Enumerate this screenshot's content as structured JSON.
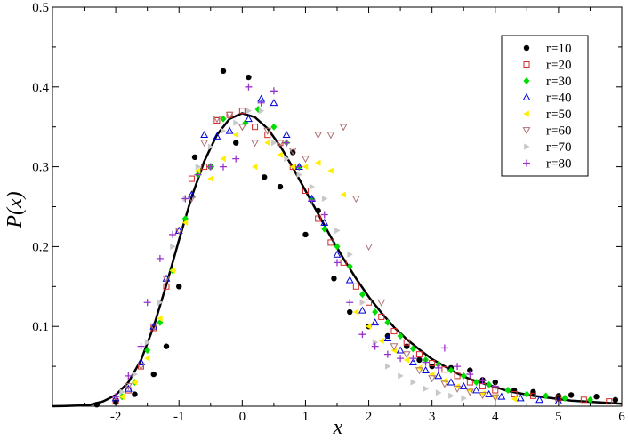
{
  "chart_data": {
    "type": "scatter",
    "xlabel": "x",
    "ylabel": "P(x)",
    "xlim": [
      -3,
      6
    ],
    "ylim": [
      0,
      0.5
    ],
    "x_ticks": [
      -2,
      -1,
      0,
      1,
      2,
      3,
      4,
      5,
      6
    ],
    "y_ticks": [
      0.1,
      0.2,
      0.3,
      0.4,
      0.5
    ],
    "legend_position": "top-right",
    "fit_curve": {
      "name": "",
      "color": "#000000",
      "points": [
        [
          -3,
          0
        ],
        [
          -2.8,
          0.0003
        ],
        [
          -2.6,
          0.0008
        ],
        [
          -2.4,
          0.002
        ],
        [
          -2.2,
          0.006
        ],
        [
          -2,
          0.014
        ],
        [
          -1.8,
          0.03
        ],
        [
          -1.6,
          0.058
        ],
        [
          -1.4,
          0.1
        ],
        [
          -1.2,
          0.152
        ],
        [
          -1,
          0.208
        ],
        [
          -0.8,
          0.262
        ],
        [
          -0.6,
          0.307
        ],
        [
          -0.4,
          0.34
        ],
        [
          -0.2,
          0.36
        ],
        [
          0,
          0.367
        ],
        [
          0.2,
          0.362
        ],
        [
          0.4,
          0.348
        ],
        [
          0.6,
          0.326
        ],
        [
          0.8,
          0.299
        ],
        [
          1,
          0.27
        ],
        [
          1.2,
          0.241
        ],
        [
          1.4,
          0.212
        ],
        [
          1.6,
          0.185
        ],
        [
          1.8,
          0.16
        ],
        [
          2,
          0.137
        ],
        [
          2.2,
          0.117
        ],
        [
          2.4,
          0.099
        ],
        [
          2.6,
          0.084
        ],
        [
          2.8,
          0.071
        ],
        [
          3,
          0.059
        ],
        [
          3.2,
          0.05
        ],
        [
          3.4,
          0.041
        ],
        [
          3.6,
          0.034
        ],
        [
          3.8,
          0.029
        ],
        [
          4,
          0.024
        ],
        [
          4.2,
          0.019
        ],
        [
          4.4,
          0.016
        ],
        [
          4.6,
          0.013
        ],
        [
          4.8,
          0.011
        ],
        [
          5,
          0.009
        ],
        [
          5.2,
          0.007
        ],
        [
          5.4,
          0.006
        ],
        [
          5.6,
          0.005
        ],
        [
          5.8,
          0.004
        ],
        [
          6,
          0.003
        ]
      ]
    },
    "series": [
      {
        "name": "r=10",
        "marker": "circle",
        "color": "#000000",
        "points": [
          [
            -2.3,
            0.002
          ],
          [
            -2.0,
            0.005
          ],
          [
            -1.7,
            0.015
          ],
          [
            -1.4,
            0.04
          ],
          [
            -1.2,
            0.075
          ],
          [
            -1.0,
            0.15
          ],
          [
            -0.75,
            0.312
          ],
          [
            -0.5,
            0.3
          ],
          [
            -0.3,
            0.42
          ],
          [
            -0.1,
            0.33
          ],
          [
            0.1,
            0.412
          ],
          [
            0.35,
            0.287
          ],
          [
            0.6,
            0.275
          ],
          [
            0.8,
            0.318
          ],
          [
            1.0,
            0.215
          ],
          [
            1.2,
            0.245
          ],
          [
            1.45,
            0.16
          ],
          [
            1.7,
            0.118
          ],
          [
            2.0,
            0.1
          ],
          [
            2.3,
            0.088
          ],
          [
            2.6,
            0.075
          ],
          [
            2.8,
            0.058
          ],
          [
            3.0,
            0.05
          ],
          [
            3.3,
            0.048
          ],
          [
            3.6,
            0.045
          ],
          [
            3.8,
            0.033
          ],
          [
            4.0,
            0.03
          ],
          [
            4.3,
            0.02
          ],
          [
            4.6,
            0.018
          ],
          [
            5.0,
            0.013
          ],
          [
            5.2,
            0.014
          ],
          [
            5.6,
            0.012
          ],
          [
            5.9,
            0.008
          ]
        ]
      },
      {
        "name": "r=20",
        "marker": "square",
        "color": "#d42a2a",
        "points": [
          [
            -2.0,
            0.006
          ],
          [
            -1.8,
            0.02
          ],
          [
            -1.6,
            0.05
          ],
          [
            -1.4,
            0.098
          ],
          [
            -1.2,
            0.15
          ],
          [
            -1.0,
            0.22
          ],
          [
            -0.8,
            0.285
          ],
          [
            -0.6,
            0.3
          ],
          [
            -0.4,
            0.358
          ],
          [
            -0.2,
            0.365
          ],
          [
            0,
            0.37
          ],
          [
            0.2,
            0.35
          ],
          [
            0.4,
            0.34
          ],
          [
            0.6,
            0.33
          ],
          [
            0.8,
            0.3
          ],
          [
            1.0,
            0.27
          ],
          [
            1.2,
            0.235
          ],
          [
            1.4,
            0.205
          ],
          [
            1.6,
            0.18
          ],
          [
            1.8,
            0.15
          ],
          [
            2.0,
            0.13
          ],
          [
            2.2,
            0.112
          ],
          [
            2.4,
            0.094
          ],
          [
            2.6,
            0.08
          ],
          [
            2.8,
            0.065
          ],
          [
            3.0,
            0.054
          ],
          [
            3.2,
            0.046
          ],
          [
            3.4,
            0.038
          ],
          [
            3.6,
            0.03
          ],
          [
            3.8,
            0.025
          ],
          [
            4.0,
            0.02
          ],
          [
            4.3,
            0.015
          ],
          [
            4.6,
            0.013
          ],
          [
            5.0,
            0.01
          ],
          [
            5.4,
            0.008
          ],
          [
            5.8,
            0.006
          ]
        ]
      },
      {
        "name": "r=30",
        "marker": "diamond",
        "color": "#00dd00",
        "points": [
          [
            -1.9,
            0.012
          ],
          [
            -1.7,
            0.03
          ],
          [
            -1.5,
            0.07
          ],
          [
            -1.3,
            0.105
          ],
          [
            -1.1,
            0.17
          ],
          [
            -0.9,
            0.235
          ],
          [
            -0.7,
            0.29
          ],
          [
            -0.5,
            0.3
          ],
          [
            -0.3,
            0.36
          ],
          [
            0.05,
            0.355
          ],
          [
            0.25,
            0.372
          ],
          [
            0.5,
            0.35
          ],
          [
            0.7,
            0.33
          ],
          [
            0.9,
            0.3
          ],
          [
            1.1,
            0.26
          ],
          [
            1.3,
            0.222
          ],
          [
            1.5,
            0.2
          ],
          [
            1.7,
            0.175
          ],
          [
            1.9,
            0.14
          ],
          [
            2.1,
            0.118
          ],
          [
            2.3,
            0.105
          ],
          [
            2.5,
            0.088
          ],
          [
            2.7,
            0.072
          ],
          [
            2.9,
            0.058
          ],
          [
            3.1,
            0.052
          ],
          [
            3.3,
            0.045
          ],
          [
            3.5,
            0.038
          ],
          [
            3.7,
            0.03
          ],
          [
            3.9,
            0.027
          ],
          [
            4.2,
            0.02
          ],
          [
            4.5,
            0.015
          ],
          [
            4.8,
            0.013
          ],
          [
            5.1,
            0.01
          ],
          [
            5.5,
            0.008
          ]
        ]
      },
      {
        "name": "r=40",
        "marker": "triangle-up",
        "color": "#0000dd",
        "points": [
          [
            -2.0,
            0.01
          ],
          [
            -1.8,
            0.022
          ],
          [
            -1.6,
            0.055
          ],
          [
            -1.4,
            0.1
          ],
          [
            -1.2,
            0.16
          ],
          [
            -1.0,
            0.22
          ],
          [
            -0.8,
            0.265
          ],
          [
            -0.6,
            0.34
          ],
          [
            -0.4,
            0.338
          ],
          [
            -0.2,
            0.345
          ],
          [
            0.1,
            0.36
          ],
          [
            0.3,
            0.385
          ],
          [
            0.5,
            0.38
          ],
          [
            0.7,
            0.34
          ],
          [
            0.9,
            0.3
          ],
          [
            1.1,
            0.26
          ],
          [
            1.3,
            0.23
          ],
          [
            1.5,
            0.19
          ],
          [
            1.7,
            0.158
          ],
          [
            1.9,
            0.12
          ],
          [
            2.1,
            0.105
          ],
          [
            2.3,
            0.085
          ],
          [
            2.5,
            0.07
          ],
          [
            2.7,
            0.055
          ],
          [
            2.9,
            0.045
          ],
          [
            3.1,
            0.038
          ],
          [
            3.3,
            0.03
          ],
          [
            3.5,
            0.025
          ],
          [
            3.7,
            0.02
          ],
          [
            3.9,
            0.015
          ],
          [
            4.1,
            0.012
          ],
          [
            4.4,
            0.01
          ],
          [
            4.7,
            0.008
          ],
          [
            5.0,
            0.006
          ]
        ]
      },
      {
        "name": "r=50",
        "marker": "triangle-left",
        "color": "#ffee00",
        "points": [
          [
            -1.9,
            0.012
          ],
          [
            -1.7,
            0.03
          ],
          [
            -1.5,
            0.06
          ],
          [
            -1.3,
            0.11
          ],
          [
            -1.1,
            0.17
          ],
          [
            -0.9,
            0.23
          ],
          [
            -0.7,
            0.295
          ],
          [
            -0.5,
            0.285
          ],
          [
            -0.3,
            0.31
          ],
          [
            -0.1,
            0.34
          ],
          [
            0.2,
            0.3
          ],
          [
            0.4,
            0.33
          ],
          [
            0.6,
            0.315
          ],
          [
            0.8,
            0.3
          ],
          [
            1.0,
            0.3
          ],
          [
            1.2,
            0.305
          ],
          [
            1.4,
            0.295
          ],
          [
            1.6,
            0.265
          ],
          [
            1.8,
            0.118
          ],
          [
            2.0,
            0.1
          ],
          [
            2.2,
            0.082
          ],
          [
            2.4,
            0.07
          ],
          [
            2.6,
            0.058
          ],
          [
            2.8,
            0.048
          ],
          [
            3.0,
            0.04
          ],
          [
            3.2,
            0.032
          ],
          [
            3.4,
            0.025
          ],
          [
            3.6,
            0.02
          ],
          [
            3.8,
            0.016
          ],
          [
            4.0,
            0.012
          ],
          [
            4.3,
            0.009
          ]
        ]
      },
      {
        "name": "r=60",
        "marker": "triangle-down",
        "color": "#b07070",
        "points": [
          [
            -1.8,
            0.025
          ],
          [
            -1.6,
            0.05
          ],
          [
            -1.4,
            0.1
          ],
          [
            -1.2,
            0.16
          ],
          [
            -1.0,
            0.22
          ],
          [
            -0.8,
            0.26
          ],
          [
            -0.6,
            0.33
          ],
          [
            -0.4,
            0.36
          ],
          [
            -0.2,
            0.365
          ],
          [
            0,
            0.35
          ],
          [
            0.2,
            0.33
          ],
          [
            0.4,
            0.345
          ],
          [
            0.6,
            0.33
          ],
          [
            0.8,
            0.32
          ],
          [
            1.0,
            0.31
          ],
          [
            1.2,
            0.34
          ],
          [
            1.4,
            0.34
          ],
          [
            1.6,
            0.35
          ],
          [
            1.8,
            0.26
          ],
          [
            2.0,
            0.2
          ],
          [
            2.2,
            0.13
          ],
          [
            2.4,
            0.075
          ],
          [
            2.6,
            0.065
          ],
          [
            2.8,
            0.045
          ],
          [
            3.0,
            0.035
          ],
          [
            3.2,
            0.028
          ],
          [
            3.4,
            0.022
          ],
          [
            3.6,
            0.018
          ],
          [
            3.8,
            0.014
          ],
          [
            4.0,
            0.011
          ]
        ]
      },
      {
        "name": "r=70",
        "marker": "triangle-right",
        "color": "#c8c8c8",
        "points": [
          [
            -1.9,
            0.018
          ],
          [
            -1.7,
            0.04
          ],
          [
            -1.5,
            0.08
          ],
          [
            -1.3,
            0.13
          ],
          [
            -1.1,
            0.2
          ],
          [
            -0.9,
            0.26
          ],
          [
            -0.7,
            0.3
          ],
          [
            -0.5,
            0.325
          ],
          [
            -0.3,
            0.345
          ],
          [
            -0.1,
            0.355
          ],
          [
            0.1,
            0.37
          ],
          [
            0.3,
            0.37
          ],
          [
            0.5,
            0.33
          ],
          [
            0.7,
            0.31
          ],
          [
            0.9,
            0.29
          ],
          [
            1.1,
            0.275
          ],
          [
            1.3,
            0.26
          ],
          [
            1.5,
            0.22
          ],
          [
            1.7,
            0.19
          ],
          [
            1.9,
            0.13
          ],
          [
            2.1,
            0.08
          ],
          [
            2.3,
            0.05
          ],
          [
            2.5,
            0.038
          ],
          [
            2.7,
            0.03
          ],
          [
            2.9,
            0.022
          ],
          [
            3.1,
            0.017
          ],
          [
            3.3,
            0.013
          ],
          [
            3.5,
            0.01
          ]
        ]
      },
      {
        "name": "r=80",
        "marker": "plus",
        "color": "#9933cc",
        "points": [
          [
            -2.0,
            0.012
          ],
          [
            -1.8,
            0.038
          ],
          [
            -1.6,
            0.075
          ],
          [
            -1.5,
            0.13
          ],
          [
            -1.3,
            0.185
          ],
          [
            -1.1,
            0.215
          ],
          [
            -0.9,
            0.26
          ],
          [
            -0.7,
            0.29
          ],
          [
            -0.5,
            0.3
          ],
          [
            -0.3,
            0.3
          ],
          [
            -0.1,
            0.31
          ],
          [
            0.1,
            0.4
          ],
          [
            0.3,
            0.38
          ],
          [
            0.5,
            0.395
          ],
          [
            0.7,
            0.33
          ],
          [
            0.9,
            0.3
          ],
          [
            1.1,
            0.258
          ],
          [
            1.3,
            0.24
          ],
          [
            1.5,
            0.18
          ],
          [
            1.7,
            0.13
          ],
          [
            1.9,
            0.09
          ],
          [
            2.1,
            0.075
          ],
          [
            2.3,
            0.065
          ],
          [
            2.5,
            0.06
          ],
          [
            2.7,
            0.06
          ],
          [
            2.9,
            0.055
          ],
          [
            3.1,
            0.048
          ],
          [
            3.2,
            0.073
          ],
          [
            3.4,
            0.05
          ],
          [
            3.6,
            0.04
          ],
          [
            3.8,
            0.032
          ],
          [
            4.0,
            0.025
          ]
        ]
      }
    ]
  }
}
